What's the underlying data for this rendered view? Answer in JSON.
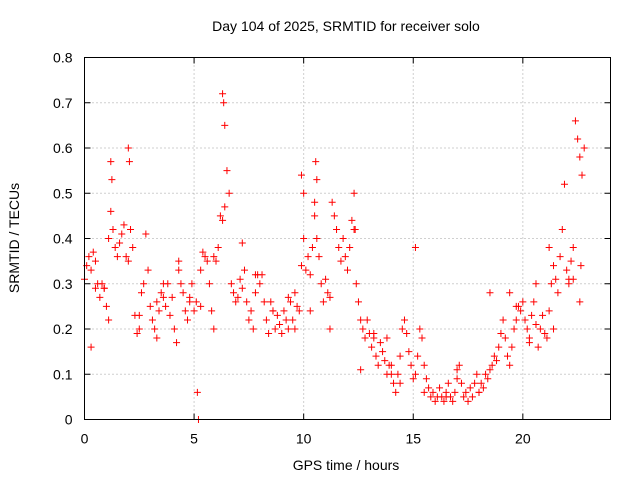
{
  "chart_data": {
    "type": "scatter",
    "title": "Day 104 of 2025, SRMTID for receiver solo",
    "xlabel": "GPS time / hours",
    "ylabel": "SRMTID / TECUs",
    "xlim": [
      0,
      24
    ],
    "ylim": [
      0,
      0.8
    ],
    "xticks": [
      0,
      5,
      10,
      15,
      20
    ],
    "xtick_labels": [
      "0",
      "5",
      "10",
      "15",
      "20"
    ],
    "yticks": [
      0,
      0.1,
      0.2,
      0.3,
      0.4,
      0.5,
      0.6,
      0.7,
      0.8
    ],
    "ytick_labels": [
      "0",
      "0.1",
      "0.2",
      "0.3",
      "0.4",
      "0.5",
      "0.6",
      "0.7",
      "0.8"
    ],
    "grid": true,
    "marker": "plus",
    "color": "#ff0000",
    "series": [
      {
        "name": "SRMTID",
        "x": [
          0.0,
          0.1,
          0.2,
          0.3,
          0.4,
          0.5,
          0.6,
          0.7,
          0.8,
          0.9,
          1.0,
          1.1,
          1.2,
          1.3,
          1.4,
          1.5,
          1.6,
          1.7,
          1.8,
          1.9,
          2.0,
          2.1,
          2.2,
          2.3,
          2.4,
          2.5,
          2.6,
          2.7,
          2.8,
          2.9,
          3.0,
          3.1,
          3.2,
          3.3,
          3.4,
          3.5,
          3.6,
          3.7,
          3.8,
          3.9,
          4.0,
          4.1,
          4.2,
          4.3,
          4.4,
          4.5,
          4.6,
          4.7,
          4.8,
          4.9,
          5.0,
          5.1,
          5.3,
          5.4,
          5.5,
          5.6,
          5.7,
          5.8,
          5.9,
          6.0,
          6.1,
          6.2,
          6.3,
          6.4,
          6.5,
          6.6,
          6.7,
          6.8,
          6.9,
          7.0,
          7.1,
          7.2,
          7.3,
          7.4,
          7.5,
          7.6,
          7.7,
          7.8,
          7.9,
          8.0,
          8.1,
          8.2,
          8.3,
          8.4,
          8.5,
          8.6,
          8.7,
          8.8,
          8.9,
          9.0,
          9.1,
          9.2,
          9.3,
          9.4,
          9.5,
          9.6,
          9.7,
          9.8,
          9.9,
          10.0,
          10.1,
          10.2,
          10.3,
          10.4,
          10.5,
          10.6,
          10.7,
          10.8,
          10.9,
          11.0,
          11.1,
          11.2,
          11.3,
          11.4,
          11.5,
          11.6,
          11.7,
          11.8,
          11.9,
          12.0,
          12.1,
          12.2,
          12.3,
          12.4,
          12.5,
          12.6,
          12.7,
          12.8,
          12.9,
          13.0,
          13.1,
          13.2,
          13.3,
          13.4,
          13.5,
          13.6,
          13.7,
          13.8,
          13.9,
          14.0,
          14.1,
          14.2,
          14.3,
          14.4,
          14.5,
          14.6,
          14.7,
          14.8,
          14.9,
          15.0,
          15.1,
          15.2,
          15.3,
          15.4,
          15.5,
          15.6,
          15.7,
          15.8,
          15.9,
          16.0,
          16.1,
          16.2,
          16.3,
          16.4,
          16.5,
          16.6,
          16.7,
          16.8,
          16.9,
          17.0,
          17.1,
          17.2,
          17.3,
          17.4,
          17.5,
          17.6,
          17.7,
          17.8,
          17.9,
          18.0,
          18.1,
          18.2,
          18.3,
          18.4,
          18.5,
          18.6,
          18.7,
          18.8,
          18.9,
          19.0,
          19.1,
          19.2,
          19.3,
          19.4,
          19.5,
          19.6,
          19.7,
          19.8,
          19.9,
          20.0,
          20.1,
          20.2,
          20.3,
          20.4,
          20.5,
          20.6,
          20.7,
          20.8,
          20.9,
          21.0,
          21.1,
          21.2,
          21.3,
          21.4,
          21.5,
          21.6,
          21.7,
          21.8,
          21.9,
          22.0,
          22.1,
          22.2,
          22.3,
          22.4,
          22.5,
          22.6,
          22.7,
          22.8,
          1.2,
          1.25,
          2.0,
          2.05,
          6.3,
          6.35,
          6.4,
          9.9,
          10.0,
          10.5,
          10.55,
          10.6,
          12.3,
          12.35,
          15.1,
          22.6,
          22.65,
          0.5,
          1.1,
          3.3,
          4.3,
          5.3,
          7.8,
          9.3,
          10.3,
          12.6,
          13.8,
          14.4,
          15.5,
          17.0,
          18.5,
          19.7,
          20.6,
          21.4,
          22.3,
          0.3,
          0.9,
          2.5,
          3.6,
          4.8,
          5.9,
          7.2,
          8.6,
          9.6,
          11.2,
          13.2,
          14.0,
          16.5,
          18.0,
          19.4,
          20.3,
          21.2,
          22.1,
          5.2,
          5.15
        ],
        "y": [
          0.31,
          0.34,
          0.36,
          0.33,
          0.37,
          0.35,
          0.3,
          0.27,
          0.3,
          0.29,
          0.25,
          0.4,
          0.46,
          0.42,
          0.38,
          0.36,
          0.39,
          0.41,
          0.43,
          0.36,
          0.35,
          0.42,
          0.38,
          0.23,
          0.19,
          0.2,
          0.28,
          0.3,
          0.41,
          0.33,
          0.25,
          0.22,
          0.2,
          0.18,
          0.24,
          0.28,
          0.27,
          0.25,
          0.3,
          0.23,
          0.27,
          0.2,
          0.17,
          0.33,
          0.3,
          0.28,
          0.24,
          0.22,
          0.26,
          0.3,
          0.24,
          0.26,
          0.33,
          0.37,
          0.36,
          0.35,
          0.3,
          0.24,
          0.36,
          0.35,
          0.38,
          0.45,
          0.44,
          0.47,
          0.55,
          0.5,
          0.3,
          0.28,
          0.26,
          0.27,
          0.31,
          0.29,
          0.33,
          0.26,
          0.22,
          0.24,
          0.2,
          0.28,
          0.32,
          0.3,
          0.32,
          0.26,
          0.22,
          0.19,
          0.26,
          0.24,
          0.2,
          0.23,
          0.21,
          0.19,
          0.24,
          0.22,
          0.27,
          0.26,
          0.22,
          0.2,
          0.25,
          0.24,
          0.34,
          0.4,
          0.33,
          0.36,
          0.32,
          0.38,
          0.45,
          0.4,
          0.36,
          0.3,
          0.26,
          0.31,
          0.28,
          0.27,
          0.48,
          0.45,
          0.42,
          0.38,
          0.35,
          0.4,
          0.36,
          0.33,
          0.38,
          0.44,
          0.42,
          0.3,
          0.26,
          0.22,
          0.2,
          0.18,
          0.22,
          0.19,
          0.16,
          0.18,
          0.14,
          0.12,
          0.17,
          0.15,
          0.13,
          0.18,
          0.12,
          0.1,
          0.08,
          0.06,
          0.1,
          0.14,
          0.2,
          0.22,
          0.19,
          0.15,
          0.12,
          0.09,
          0.1,
          0.14,
          0.2,
          0.18,
          0.12,
          0.09,
          0.07,
          0.05,
          0.06,
          0.04,
          0.05,
          0.07,
          0.05,
          0.04,
          0.06,
          0.08,
          0.05,
          0.04,
          0.06,
          0.09,
          0.12,
          0.08,
          0.05,
          0.06,
          0.04,
          0.07,
          0.05,
          0.08,
          0.1,
          0.06,
          0.08,
          0.07,
          0.1,
          0.09,
          0.11,
          0.12,
          0.14,
          0.13,
          0.16,
          0.19,
          0.22,
          0.18,
          0.14,
          0.12,
          0.16,
          0.2,
          0.22,
          0.25,
          0.24,
          0.26,
          0.22,
          0.2,
          0.18,
          0.23,
          0.26,
          0.21,
          0.16,
          0.2,
          0.23,
          0.19,
          0.18,
          0.24,
          0.3,
          0.34,
          0.31,
          0.28,
          0.36,
          0.42,
          0.52,
          0.33,
          0.3,
          0.35,
          0.31,
          0.66,
          0.62,
          0.58,
          0.54,
          0.6,
          0.57,
          0.53,
          0.6,
          0.57,
          0.72,
          0.7,
          0.65,
          0.54,
          0.5,
          0.48,
          0.57,
          0.53,
          0.5,
          0.42,
          0.38,
          0.26,
          0.34,
          0.29,
          0.22,
          0.26,
          0.35,
          0.25,
          0.32,
          0.2,
          0.24,
          0.11,
          0.1,
          0.08,
          0.06,
          0.11,
          0.28,
          0.25,
          0.3,
          0.2,
          0.38,
          0.16,
          0.29,
          0.23,
          0.3,
          0.27,
          0.2,
          0.39,
          0.24,
          0.28,
          0.2,
          0.19,
          0.12,
          0.05,
          0.06,
          0.28,
          0.17,
          0.38,
          0.31,
          0.0,
          0.06
        ]
      }
    ]
  }
}
